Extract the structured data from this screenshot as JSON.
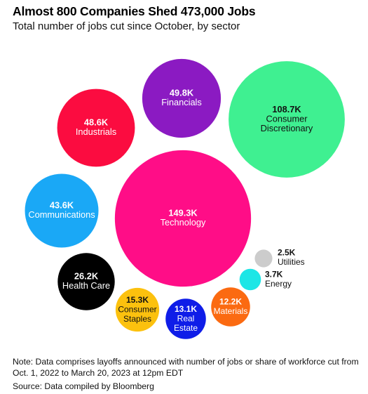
{
  "title": "Almost 800 Companies Shed 473,000 Jobs",
  "subtitle": "Total number of jobs cut since October, by sector",
  "note": "Note: Data comprises layoffs announced with number of jobs or share of workforce cut from Oct. 1, 2022 to March 20, 2023 at 12pm EDT",
  "source": "Source: Data compiled by Bloomberg",
  "chart_data": {
    "type": "bubble",
    "title": "Almost 800 Companies Shed 473,000 Jobs",
    "subtitle": "Total number of jobs cut since October, by sector",
    "unit": "jobs",
    "bubbles": [
      {
        "sector": "Technology",
        "label": [
          "Technology"
        ],
        "value": 149.3,
        "display": "149.3K",
        "color": "#ff0d87"
      },
      {
        "sector": "Consumer Discretionary",
        "label": [
          "Consumer",
          "Discretionary"
        ],
        "value": 108.7,
        "display": "108.7K",
        "color": "#3ff091"
      },
      {
        "sector": "Financials",
        "label": [
          "Financials"
        ],
        "value": 49.8,
        "display": "49.8K",
        "color": "#8b1ac2"
      },
      {
        "sector": "Industrials",
        "label": [
          "Industrials"
        ],
        "value": 48.6,
        "display": "48.6K",
        "color": "#fb0c40"
      },
      {
        "sector": "Communications",
        "label": [
          "Communications"
        ],
        "value": 43.6,
        "display": "43.6K",
        "color": "#1aa8f6"
      },
      {
        "sector": "Health Care",
        "label": [
          "Health Care"
        ],
        "value": 26.2,
        "display": "26.2K",
        "color": "#000000"
      },
      {
        "sector": "Consumer Staples",
        "label": [
          "Consumer",
          "Staples"
        ],
        "value": 15.3,
        "display": "15.3K",
        "color": "#fcc10e"
      },
      {
        "sector": "Real Estate",
        "label": [
          "Real",
          "Estate"
        ],
        "value": 13.1,
        "display": "13.1K",
        "color": "#0f1de8"
      },
      {
        "sector": "Materials",
        "label": [
          "Materials"
        ],
        "value": 12.2,
        "display": "12.2K",
        "color": "#fb6a11"
      },
      {
        "sector": "Energy",
        "label": [
          "Energy"
        ],
        "value": 3.7,
        "display": "3.7K",
        "color": "#1de6e6"
      },
      {
        "sector": "Utilities",
        "label": [
          "Utilities"
        ],
        "value": 2.5,
        "display": "2.5K",
        "color": "#cccccc"
      }
    ]
  }
}
